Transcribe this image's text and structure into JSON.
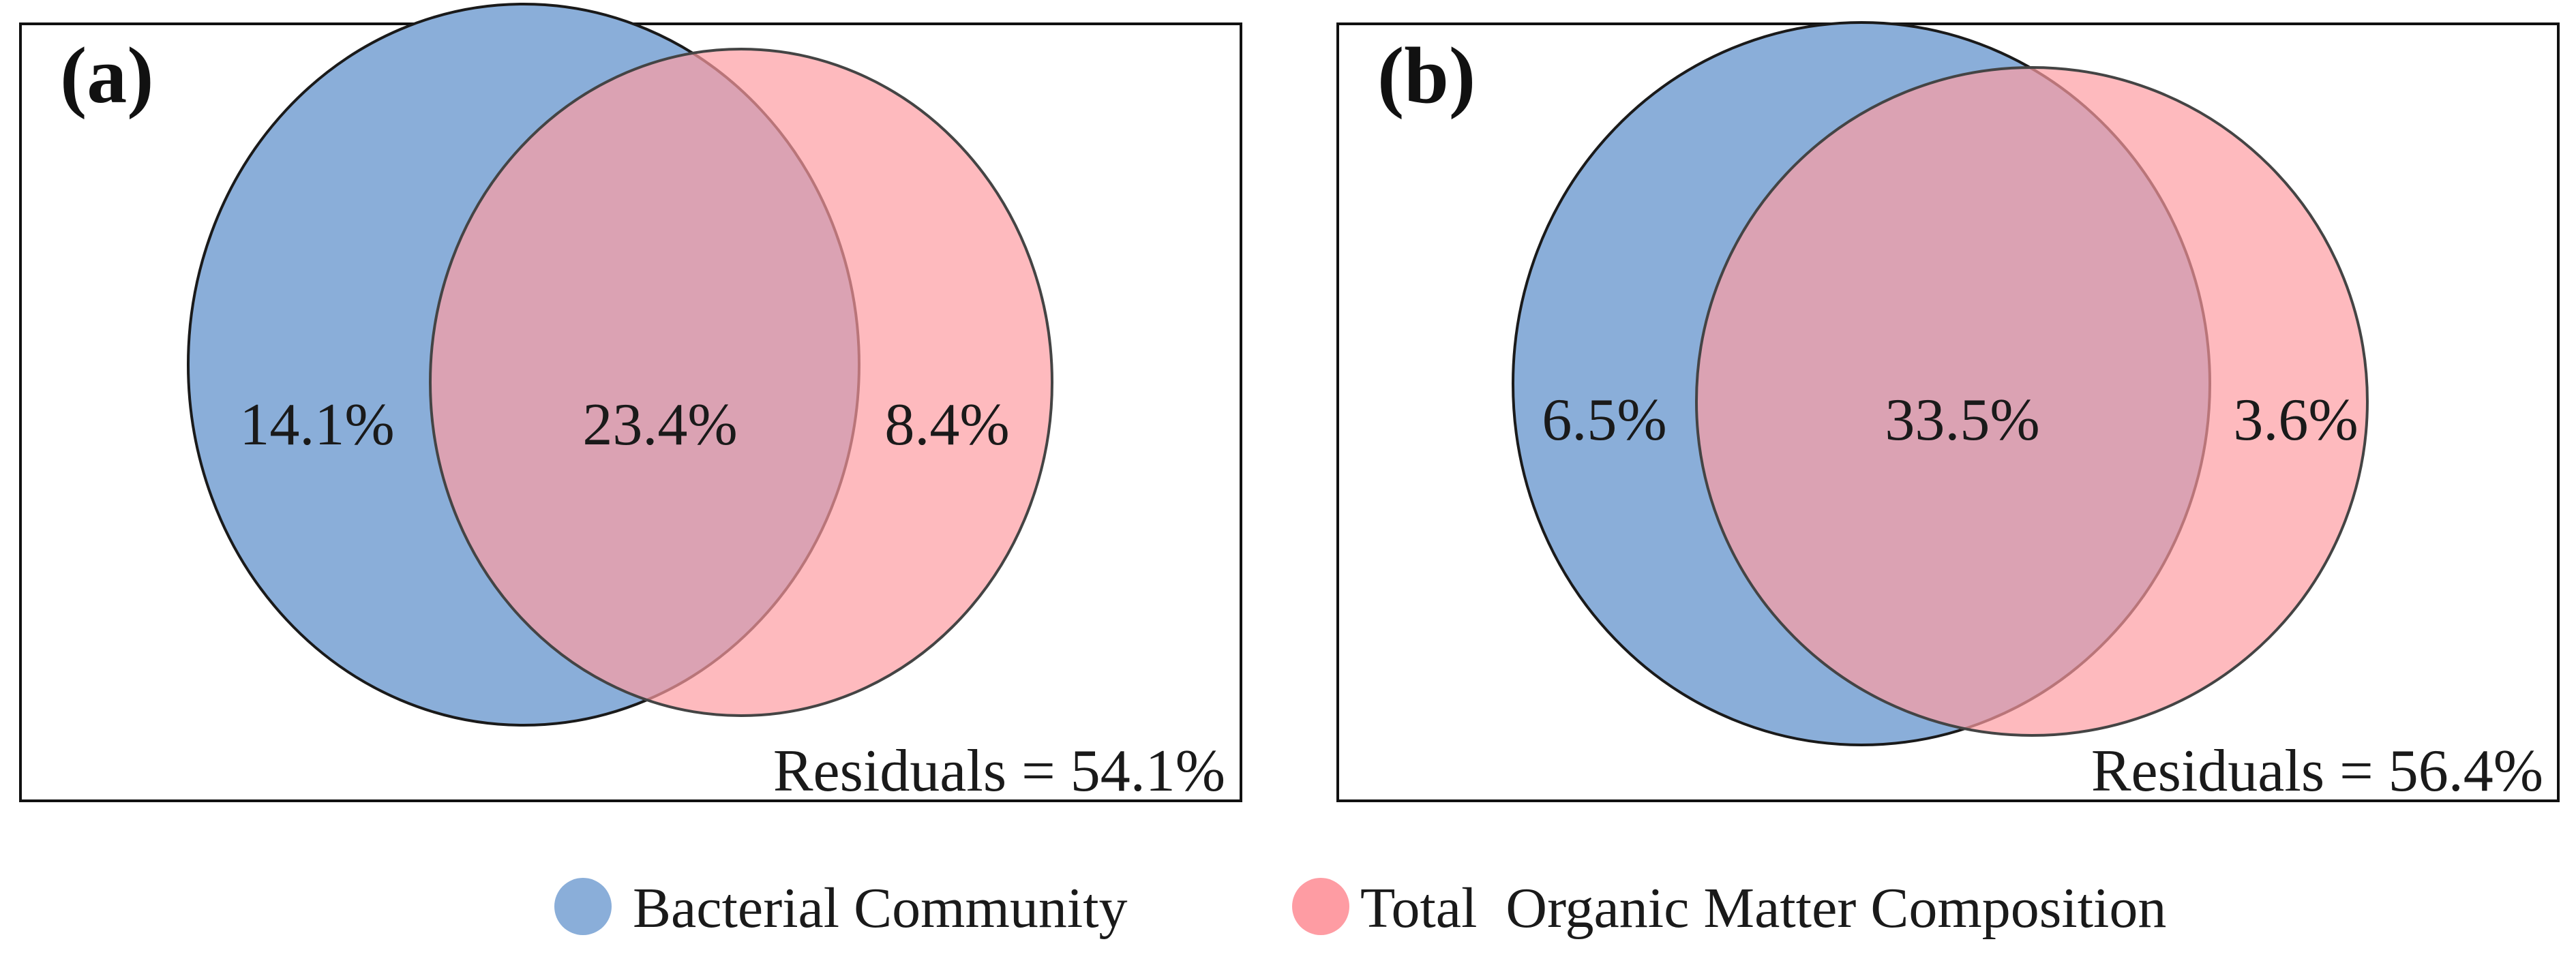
{
  "colors": {
    "bacterial": "#8aaed9",
    "organic": "#fe9ca3",
    "frame": "#111111"
  },
  "panels": [
    {
      "panel_label": "(a)",
      "sets": [
        "Bacterial Community",
        "Total  Organic Matter Composition"
      ],
      "regions": {
        "bacterial_only": "14.1%",
        "shared": "23.4%",
        "organic_only": "8.4%"
      },
      "residuals": "Residuals = 54.1%"
    },
    {
      "panel_label": "(b)",
      "sets": [
        "Bacterial Community",
        "Total  Organic Matter Composition"
      ],
      "regions": {
        "bacterial_only": "6.5%",
        "shared": "33.5%",
        "organic_only": "3.6%"
      },
      "residuals": "Residuals = 56.4%"
    }
  ],
  "legend": {
    "items": [
      {
        "label": "Bacterial Community",
        "color": "#8aaed9"
      },
      {
        "label": "Total  Organic Matter Composition",
        "color": "#fe9ca3"
      }
    ]
  }
}
